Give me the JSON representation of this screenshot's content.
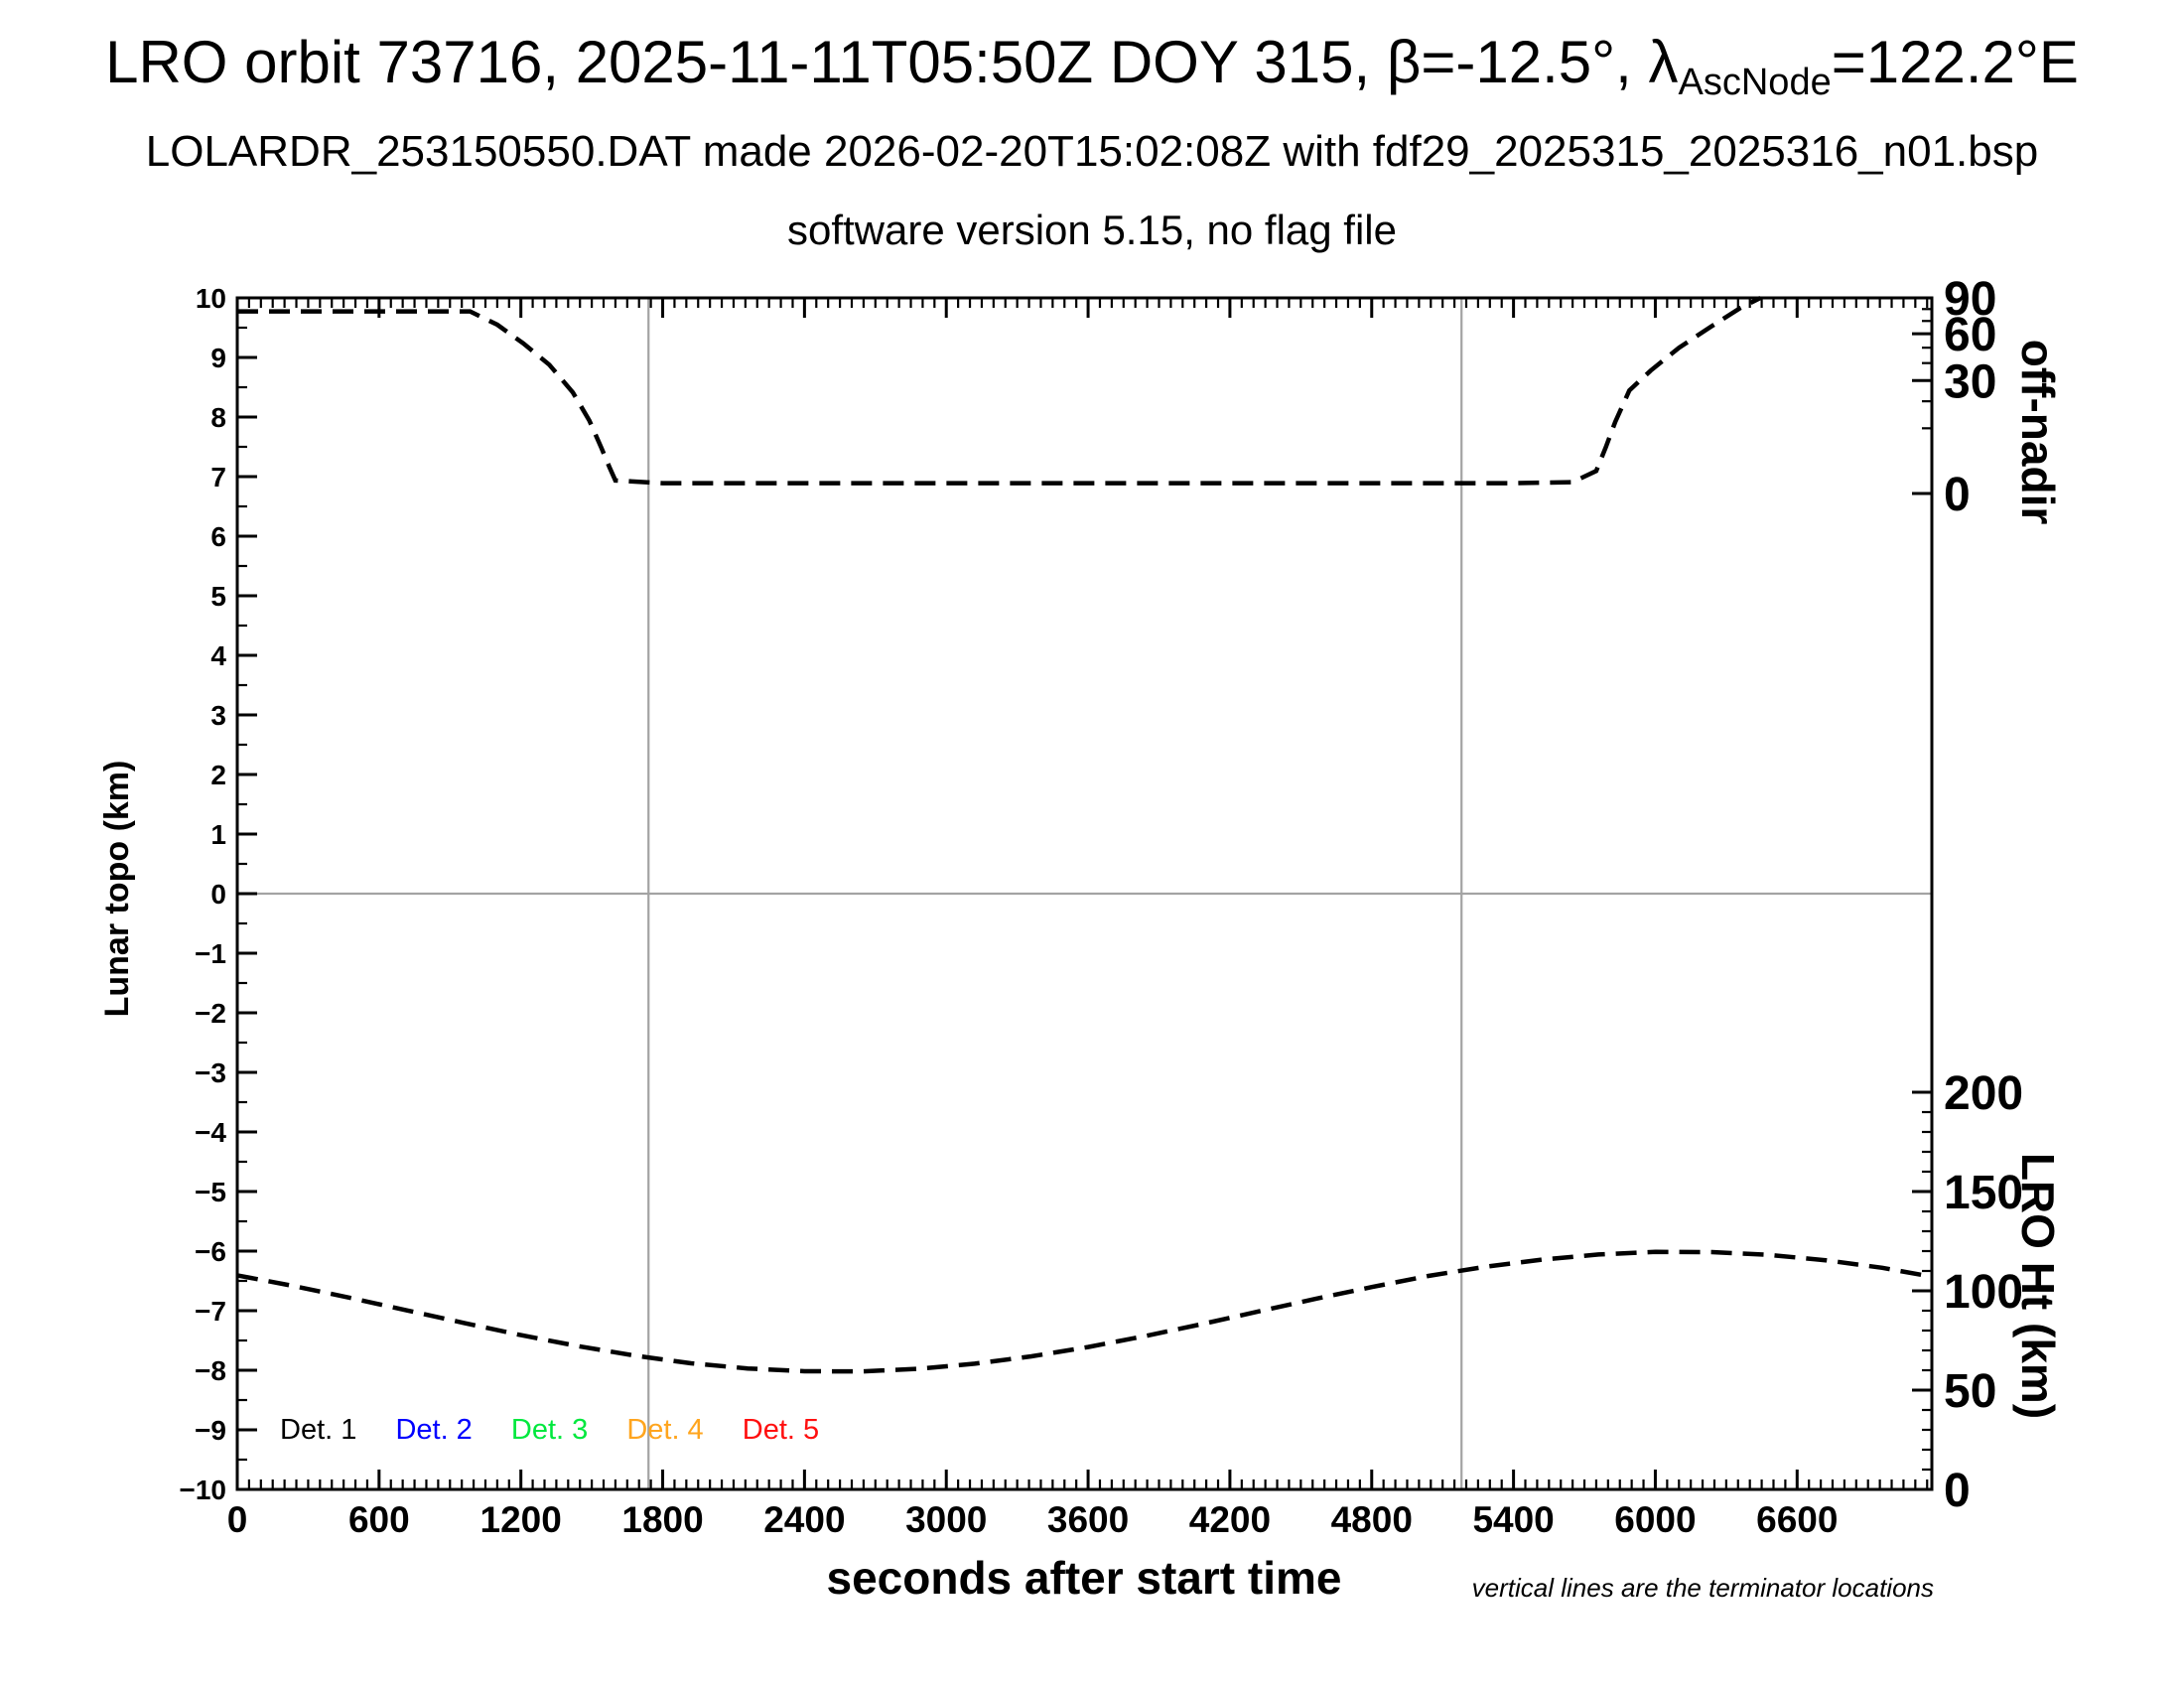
{
  "header": {
    "title_prefix": "LRO orbit 73716, 2025-11-11T05:50Z DOY 315, β=-12.5°, λ",
    "title_subscript": "AscNode",
    "title_suffix": "=122.2°E",
    "subtitle": "LOLARDR_253150550.DAT made 2026-02-20T15:02:08Z with fdf29_2025315_2025316_n01.bsp",
    "version_line": "software version 5.15, no flag file"
  },
  "chart_data": {
    "type": "line",
    "x_axis": {
      "label": "seconds after start time",
      "min": 0,
      "max": 7170,
      "tick_labels": [
        0,
        600,
        1200,
        1800,
        2400,
        3000,
        3600,
        4200,
        4800,
        5400,
        6000,
        6600
      ],
      "major_tick_step": 600,
      "minor_tick_step": 50
    },
    "y_left_axis": {
      "label": "Lunar topo (km)",
      "min": -10,
      "max": 10,
      "tick_labels": [
        10,
        9,
        8,
        7,
        6,
        5,
        4,
        3,
        2,
        1,
        0,
        -1,
        -2,
        -3,
        -4,
        -5,
        -6,
        -7,
        -8,
        -9,
        -10
      ],
      "major_tick_step": 1,
      "minor_tick_step": 0.5
    },
    "y_right_offnadir_axis": {
      "label": "off-nadir",
      "min": 0,
      "max": 90,
      "scale": "sqrt",
      "tick_labels": [
        90,
        60,
        30,
        0
      ],
      "minor_ticks": [
        80,
        70,
        50,
        40,
        20,
        10
      ]
    },
    "y_right_height_axis": {
      "label": "LRO Ht (km)",
      "min": 0,
      "max": 200,
      "tick_labels": [
        200,
        150,
        100,
        50,
        0
      ],
      "minor_tick_step": 10
    },
    "grid": {
      "horizontal_gray_line_at_topo": 0,
      "terminator_times_s": [
        1740,
        5180
      ]
    },
    "series": [
      {
        "name": "spacecraft off-nadir angle",
        "axis": "offnadir",
        "color": "#000000",
        "line_style": "dashed",
        "points": [
          [
            0,
            78
          ],
          [
            300,
            78
          ],
          [
            600,
            78
          ],
          [
            900,
            78
          ],
          [
            985,
            78
          ],
          [
            1100,
            67
          ],
          [
            1210,
            53
          ],
          [
            1320,
            39
          ],
          [
            1420,
            24
          ],
          [
            1490,
            12.5
          ],
          [
            1540,
            5
          ],
          [
            1575,
            1.6
          ],
          [
            1600,
            0.4
          ],
          [
            1800,
            0.25
          ],
          [
            2400,
            0.25
          ],
          [
            3000,
            0.25
          ],
          [
            3600,
            0.25
          ],
          [
            4200,
            0.25
          ],
          [
            4800,
            0.25
          ],
          [
            5400,
            0.25
          ],
          [
            5650,
            0.3
          ],
          [
            5750,
            1.2
          ],
          [
            5790,
            5
          ],
          [
            5830,
            12
          ],
          [
            5890,
            25
          ],
          [
            5980,
            35.5
          ],
          [
            6100,
            50
          ],
          [
            6240,
            66
          ],
          [
            6360,
            81
          ],
          [
            6445,
            90
          ]
        ]
      },
      {
        "name": "LRO height above surface",
        "axis": "height",
        "color": "#000000",
        "line_style": "dashed",
        "points": [
          [
            0,
            107.8
          ],
          [
            240,
            102.4
          ],
          [
            480,
            96.4
          ],
          [
            720,
            90.1
          ],
          [
            960,
            83.8
          ],
          [
            1200,
            77.7
          ],
          [
            1440,
            72.2
          ],
          [
            1680,
            67.4
          ],
          [
            1920,
            63.5
          ],
          [
            2160,
            60.9
          ],
          [
            2400,
            59.5
          ],
          [
            2640,
            59.4
          ],
          [
            2880,
            60.7
          ],
          [
            3120,
            63.3
          ],
          [
            3360,
            67.0
          ],
          [
            3600,
            71.7
          ],
          [
            3840,
            77.2
          ],
          [
            4080,
            83.2
          ],
          [
            4320,
            89.6
          ],
          [
            4560,
            95.9
          ],
          [
            4800,
            101.9
          ],
          [
            5040,
            107.5
          ],
          [
            5280,
            112.1
          ],
          [
            5520,
            115.7
          ],
          [
            5760,
            118.3
          ],
          [
            6000,
            119.6
          ],
          [
            6240,
            119.5
          ],
          [
            6480,
            118.1
          ],
          [
            6720,
            115.4
          ],
          [
            6960,
            111.6
          ],
          [
            7170,
            107.1
          ]
        ]
      }
    ],
    "legend": [
      {
        "label": "Det. 1",
        "color": "#000000"
      },
      {
        "label": "Det. 2",
        "color": "#0000ff"
      },
      {
        "label": "Det. 3",
        "color": "#00e83e"
      },
      {
        "label": "Det. 4",
        "color": "#ffa51e"
      },
      {
        "label": "Det. 5",
        "color": "#ff0f0f"
      }
    ],
    "note": "vertical lines are the terminator locations",
    "colors": {
      "curve": "#000000",
      "guide_gray": "#a3a3a3",
      "frame": "#000000"
    }
  }
}
